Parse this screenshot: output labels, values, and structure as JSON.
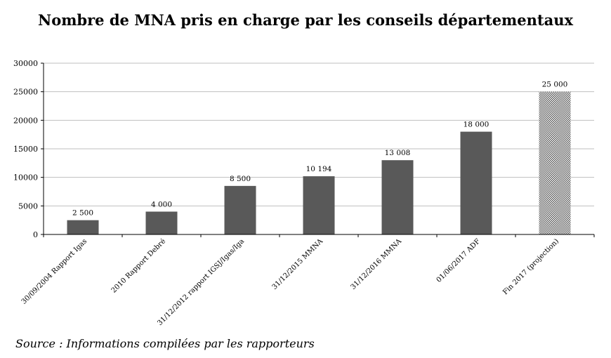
{
  "chart_data": {
    "type": "bar",
    "title": "Nombre de MNA pris en charge par les conseils départementaux",
    "categories": [
      "30/09/2004 Rapport Igas",
      "2010 Rapport Debré",
      "31/12/2012 rapport IGSJ/Igas/Iga",
      "31/12/2015 MMNA",
      "31/12/2016 MMNA",
      "01/06/2017 ADF",
      "Fin 2017 (projection)"
    ],
    "values": [
      2500,
      4000,
      8500,
      10194,
      13008,
      18000,
      25000
    ],
    "data_labels": [
      "2 500",
      "4 000",
      "8 500",
      "10 194",
      "13 008",
      "18 000",
      "25 000"
    ],
    "projection_index": 6,
    "ylim": [
      0,
      30000
    ],
    "yticks": [
      "0",
      "5000",
      "10000",
      "15000",
      "20000",
      "25000",
      "30000"
    ],
    "ytick_values": [
      0,
      5000,
      10000,
      15000,
      20000,
      25000,
      30000
    ],
    "grid": true,
    "colors": {
      "bar": "#595959",
      "projection": "#8c8c8c",
      "grid": "#bfbfbf"
    }
  },
  "source": "Source : Informations compilées par les rapporteurs"
}
